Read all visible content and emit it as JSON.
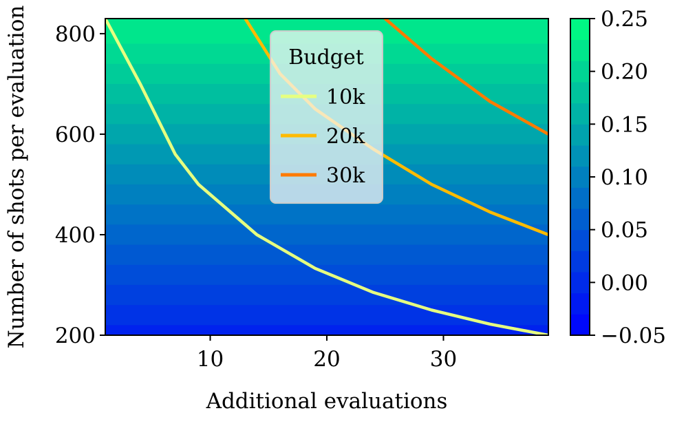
{
  "chart_data": {
    "type": "contour",
    "title": "",
    "xlabel": "Additional evaluations",
    "ylabel": "Number of shots per evaluation",
    "xlim": [
      1,
      39
    ],
    "ylim": [
      200,
      830
    ],
    "x_ticks": [
      10,
      20,
      30
    ],
    "x_tick_labels": [
      "10",
      "20",
      "30"
    ],
    "y_ticks": [
      200,
      400,
      600,
      800
    ],
    "y_tick_labels": [
      "200",
      "400",
      "600",
      "800"
    ],
    "colorbar": {
      "range": [
        -0.05,
        0.25
      ],
      "colormap": "winter",
      "ticks": [
        -0.05,
        0.0,
        0.05,
        0.1,
        0.15,
        0.2,
        0.25
      ],
      "tick_labels": [
        "−0.05",
        "0.00",
        "0.05",
        "0.10",
        "0.15",
        "0.20",
        "0.25"
      ]
    },
    "contour_rows": [
      {
        "y": 800,
        "value": 0.22
      },
      {
        "y": 760,
        "value": 0.205
      },
      {
        "y": 720,
        "value": 0.19
      },
      {
        "y": 680,
        "value": 0.175
      },
      {
        "y": 640,
        "value": 0.16
      },
      {
        "y": 600,
        "value": 0.145
      },
      {
        "y": 560,
        "value": 0.13
      },
      {
        "y": 520,
        "value": 0.115
      },
      {
        "y": 480,
        "value": 0.1
      },
      {
        "y": 440,
        "value": 0.085
      },
      {
        "y": 400,
        "value": 0.07
      },
      {
        "y": 360,
        "value": 0.055
      },
      {
        "y": 320,
        "value": 0.04
      },
      {
        "y": 280,
        "value": 0.025
      },
      {
        "y": 240,
        "value": 0.01
      },
      {
        "y": 200,
        "value": -0.01
      }
    ],
    "legend": {
      "title": "Budget",
      "position": "upper-center"
    },
    "series": [
      {
        "name": "10k",
        "color": "#e6ff80",
        "points": [
          [
            1,
            830
          ],
          [
            4,
            700
          ],
          [
            7,
            560
          ],
          [
            9,
            500
          ],
          [
            14,
            400
          ],
          [
            19,
            333
          ],
          [
            24,
            285
          ],
          [
            29,
            250
          ],
          [
            34,
            222
          ],
          [
            39,
            200
          ]
        ]
      },
      {
        "name": "20k",
        "color": "#ffbb00",
        "points": [
          [
            13,
            830
          ],
          [
            16,
            720
          ],
          [
            19,
            650
          ],
          [
            24,
            570
          ],
          [
            29,
            500
          ],
          [
            34,
            445
          ],
          [
            39,
            400
          ]
        ]
      },
      {
        "name": "30k",
        "color": "#ff7b00",
        "points": [
          [
            25,
            830
          ],
          [
            29,
            750
          ],
          [
            34,
            665
          ],
          [
            39,
            600
          ]
        ]
      }
    ]
  }
}
